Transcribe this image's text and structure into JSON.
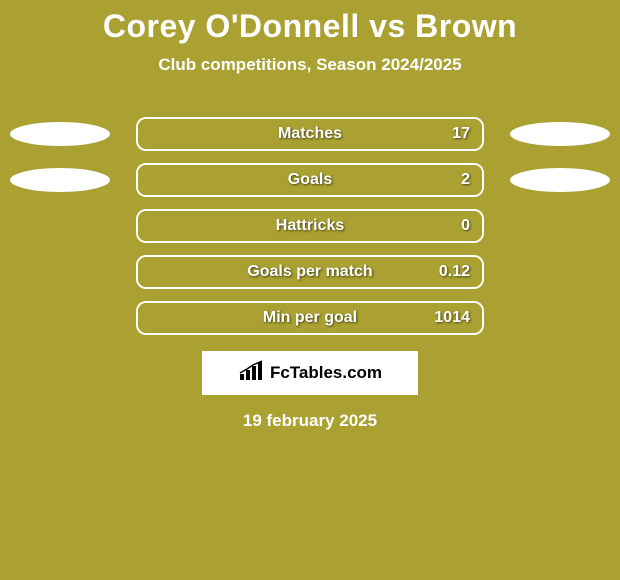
{
  "background_color": "#aaa132",
  "title": "Corey O'Donnell vs Brown",
  "title_color": "#ffffff",
  "subtitle": "Club competitions, Season 2024/2025",
  "subtitle_color": "#ffffff",
  "bar_border_color": "#aaa132",
  "bar_fill_color": "#aaa132",
  "bar_frame_outer_color": "#ffffff",
  "oval_color": "#ffffff",
  "stats": [
    {
      "label": "Matches",
      "value": "17",
      "fill_pct": 100,
      "left_oval": true,
      "right_oval": true
    },
    {
      "label": "Goals",
      "value": "2",
      "fill_pct": 100,
      "left_oval": true,
      "right_oval": true
    },
    {
      "label": "Hattricks",
      "value": "0",
      "fill_pct": 0,
      "left_oval": false,
      "right_oval": false
    },
    {
      "label": "Goals per match",
      "value": "0.12",
      "fill_pct": 0,
      "left_oval": false,
      "right_oval": false
    },
    {
      "label": "Min per goal",
      "value": "1014",
      "fill_pct": 0,
      "left_oval": false,
      "right_oval": false
    }
  ],
  "logo_text": "FcTables.com",
  "date": "19 february 2025",
  "date_color": "#ffffff"
}
